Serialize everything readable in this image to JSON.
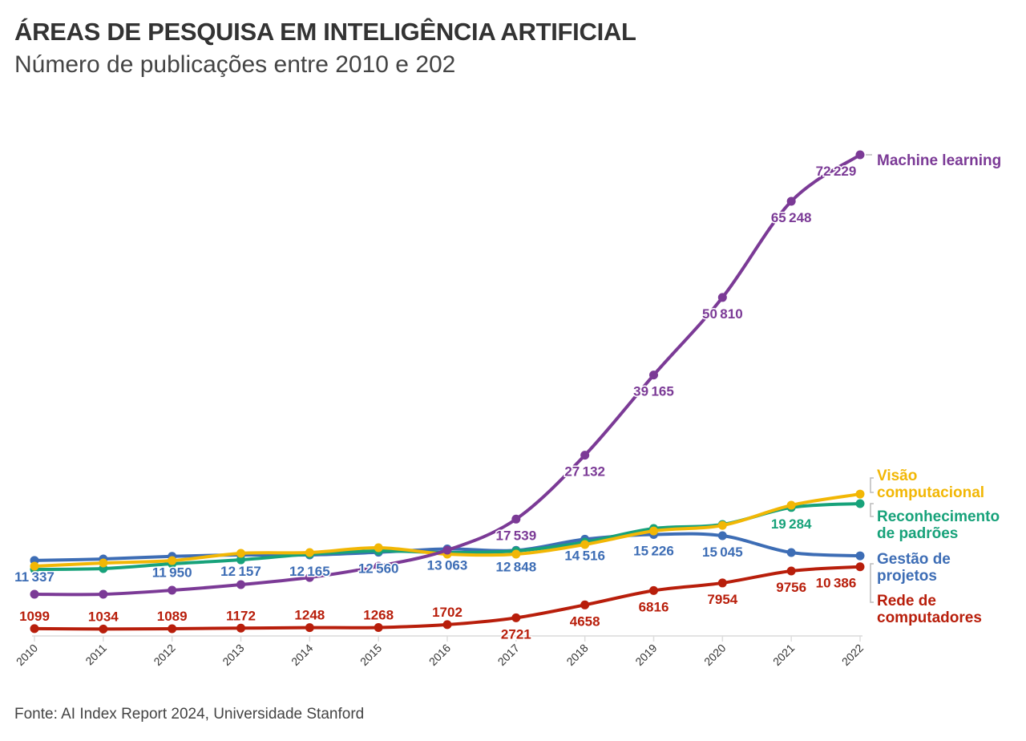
{
  "header": {
    "title": "ÁREAS DE PESQUISA EM INTELIGÊNCIA ARTIFICIAL",
    "subtitle": "Número de publicações entre 2010 e 202"
  },
  "footer": {
    "source": "Fonte: AI Index Report 2024, Universidade Stanford"
  },
  "chart_data": {
    "type": "line",
    "title": "ÁREAS DE PESQUISA EM INTELIGÊNCIA ARTIFICIAL",
    "subtitle": "Número de publicações entre 2010 e 202",
    "xlabel": "",
    "ylabel": "",
    "ylim": [
      0,
      72229
    ],
    "grid": false,
    "x": [
      2010,
      2011,
      2012,
      2013,
      2014,
      2015,
      2016,
      2017,
      2018,
      2019,
      2020,
      2021,
      2022
    ],
    "series": [
      {
        "name": "Machine learning",
        "label_lines": [
          "Machine learning"
        ],
        "color": "#7B3A96",
        "values": [
          6260,
          6260,
          6860,
          7700,
          8780,
          10470,
          12880,
          17539,
          27132,
          39165,
          50810,
          65248,
          72229
        ],
        "labeled": [
          7,
          8,
          9,
          10,
          11,
          12
        ],
        "label_pos": "below"
      },
      {
        "name": "Visão computacional",
        "label_lines": [
          "Visão",
          "computacional"
        ],
        "color": "#F2B705",
        "values": [
          10470,
          10950,
          11310,
          12400,
          12520,
          13240,
          12280,
          12280,
          13720,
          15760,
          16600,
          19620,
          21300
        ],
        "labeled": [],
        "label_pos": "below"
      },
      {
        "name": "Reconhecimento de padrões",
        "label_lines": [
          "Reconhecimento",
          "de padrões"
        ],
        "color": "#17A27A",
        "values": [
          9990,
          10110,
          10830,
          11430,
          12280,
          12760,
          12520,
          12760,
          14080,
          16130,
          16730,
          19284,
          19860
        ],
        "labeled": [
          11
        ],
        "label_pos": "below"
      },
      {
        "name": "Gestão de projetos",
        "label_lines": [
          "Gestão de",
          "projetos"
        ],
        "color": "#3D6DB5",
        "values": [
          11337,
          11550,
          11950,
          12157,
          12165,
          12560,
          13063,
          12848,
          14516,
          15226,
          15045,
          12520,
          12030
        ],
        "labeled": [
          0,
          2,
          3,
          4,
          5,
          6,
          7,
          8,
          9,
          10
        ],
        "label_pos": "below"
      },
      {
        "name": "Rede de computadores",
        "label_lines": [
          "Rede de",
          "computadores"
        ],
        "color": "#B81E0B",
        "values": [
          1099,
          1034,
          1089,
          1172,
          1248,
          1268,
          1702,
          2721,
          4658,
          6816,
          7954,
          9756,
          10386
        ],
        "labeled": [
          0,
          1,
          2,
          3,
          4,
          5,
          6,
          7,
          8,
          9,
          10,
          11,
          12
        ],
        "label_pos": "mixed"
      }
    ],
    "legend": "right-end labels"
  }
}
